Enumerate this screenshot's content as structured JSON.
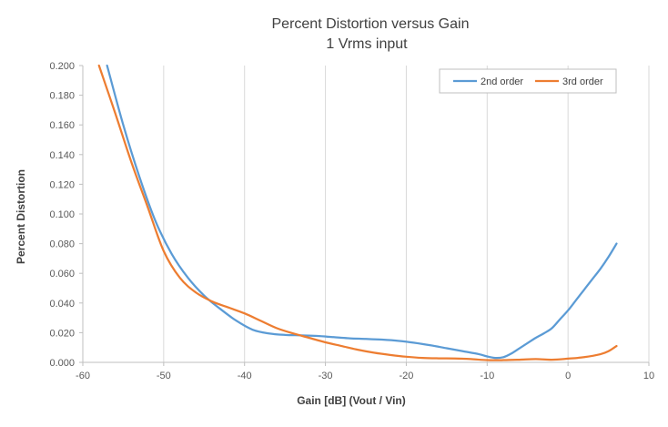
{
  "chart_data": {
    "type": "line",
    "title": "Percent Distortion versus Gain",
    "subtitle": "1 Vrms input",
    "xlabel": "Gain [dB]  (Vout / Vin)",
    "ylabel": "Percent Distortion",
    "xlim": [
      -60,
      10
    ],
    "ylim": [
      0,
      0.2
    ],
    "x_ticks": [
      "-60",
      "-50",
      "-40",
      "-30",
      "-20",
      "-10",
      "0",
      "10"
    ],
    "x_tick_values": [
      -60,
      -50,
      -40,
      -30,
      -20,
      -10,
      0,
      10
    ],
    "y_ticks": [
      "0.000",
      "0.020",
      "0.040",
      "0.060",
      "0.080",
      "0.100",
      "0.120",
      "0.140",
      "0.160",
      "0.180",
      "0.200"
    ],
    "y_tick_values": [
      0,
      0.02,
      0.04,
      0.06,
      0.08,
      0.1,
      0.12,
      0.14,
      0.16,
      0.18,
      0.2
    ],
    "grid": "vertical",
    "legend_position": "top-right",
    "series": [
      {
        "name": "2nd order",
        "color": "#5B9BD5",
        "points": [
          [
            -57,
            0.2
          ],
          [
            -55,
            0.16
          ],
          [
            -53,
            0.125
          ],
          [
            -51,
            0.095
          ],
          [
            -49,
            0.073
          ],
          [
            -47,
            0.057
          ],
          [
            -45,
            0.045
          ],
          [
            -43,
            0.036
          ],
          [
            -41,
            0.028
          ],
          [
            -39,
            0.022
          ],
          [
            -37,
            0.0195
          ],
          [
            -35,
            0.0185
          ],
          [
            -33,
            0.0182
          ],
          [
            -31,
            0.0178
          ],
          [
            -29,
            0.017
          ],
          [
            -27,
            0.0162
          ],
          [
            -25,
            0.0158
          ],
          [
            -23,
            0.0153
          ],
          [
            -21,
            0.0145
          ],
          [
            -19,
            0.0132
          ],
          [
            -17,
            0.0115
          ],
          [
            -15,
            0.0095
          ],
          [
            -13,
            0.0075
          ],
          [
            -11,
            0.0055
          ],
          [
            -10,
            0.004
          ],
          [
            -9,
            0.003
          ],
          [
            -8,
            0.0035
          ],
          [
            -7,
            0.006
          ],
          [
            -6,
            0.0095
          ],
          [
            -5,
            0.013
          ],
          [
            -4,
            0.0165
          ],
          [
            -3,
            0.0195
          ],
          [
            -2,
            0.023
          ],
          [
            -1,
            0.029
          ],
          [
            0,
            0.035
          ],
          [
            1,
            0.042
          ],
          [
            2,
            0.049
          ],
          [
            3,
            0.056
          ],
          [
            4,
            0.063
          ],
          [
            5,
            0.071
          ],
          [
            6,
            0.08
          ]
        ]
      },
      {
        "name": "3rd order",
        "color": "#ED7D31",
        "points": [
          [
            -58,
            0.2
          ],
          [
            -56,
            0.168
          ],
          [
            -54,
            0.135
          ],
          [
            -52,
            0.105
          ],
          [
            -50,
            0.075
          ],
          [
            -48,
            0.057
          ],
          [
            -46,
            0.047
          ],
          [
            -44,
            0.041
          ],
          [
            -42,
            0.037
          ],
          [
            -40,
            0.033
          ],
          [
            -38,
            0.028
          ],
          [
            -36,
            0.023
          ],
          [
            -34,
            0.0195
          ],
          [
            -32,
            0.0165
          ],
          [
            -30,
            0.0135
          ],
          [
            -28,
            0.011
          ],
          [
            -26,
            0.0085
          ],
          [
            -24,
            0.0065
          ],
          [
            -22,
            0.005
          ],
          [
            -20,
            0.0038
          ],
          [
            -18,
            0.003
          ],
          [
            -16,
            0.0027
          ],
          [
            -14,
            0.0026
          ],
          [
            -12,
            0.0022
          ],
          [
            -10,
            0.0015
          ],
          [
            -8,
            0.0015
          ],
          [
            -6,
            0.0018
          ],
          [
            -4,
            0.0022
          ],
          [
            -2,
            0.0018
          ],
          [
            0,
            0.0025
          ],
          [
            2,
            0.0035
          ],
          [
            4,
            0.0055
          ],
          [
            5,
            0.0075
          ],
          [
            6,
            0.011
          ]
        ]
      }
    ]
  }
}
